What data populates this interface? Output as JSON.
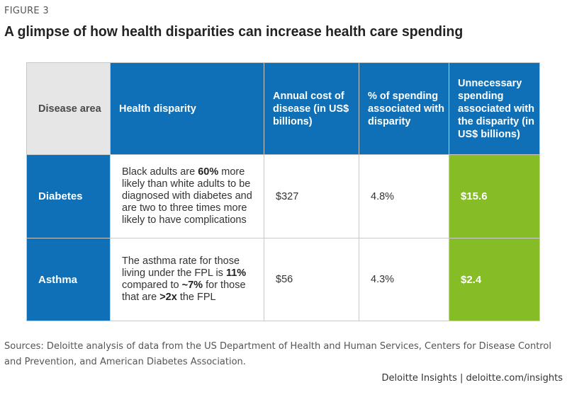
{
  "figure_label": "FIGURE 3",
  "title": "A glimpse of how health disparities can increase health care spending",
  "table": {
    "headers": [
      "Disease area",
      "Health disparity",
      "Annual cost of disease (in US$ billions)",
      "% of spending associated with disparity",
      "Unnecessary spending associated with the disparity (in US$ billions)"
    ],
    "rows": [
      {
        "disease_area": "Diabetes",
        "disparity_parts": [
          "Black adults are ",
          "60%",
          " more likely than white adults to be diagnosed with diabetes and are two to three times more likely to have complications"
        ],
        "annual_cost": "$327",
        "pct_spending": "4.8%",
        "unnecessary_spending": "$15.6"
      },
      {
        "disease_area": "Asthma",
        "disparity_parts": [
          "The asthma rate for those living under the FPL is ",
          "11%",
          " compared to ",
          "~7%",
          " for those that are ",
          ">2x",
          " the FPL"
        ],
        "annual_cost": "$56",
        "pct_spending": "4.3%",
        "unnecessary_spending": "$2.4"
      }
    ]
  },
  "sources": "Sources: Deloitte analysis of data from the US Department of Health and Human Services, Centers for Disease Control and Prevention, and American Diabetes Association.",
  "credit": "Deloitte Insights | deloitte.com/insights",
  "colors": {
    "blue": "#0f70b7",
    "green": "#86bc25",
    "header_gray": "#e6e6e6"
  }
}
